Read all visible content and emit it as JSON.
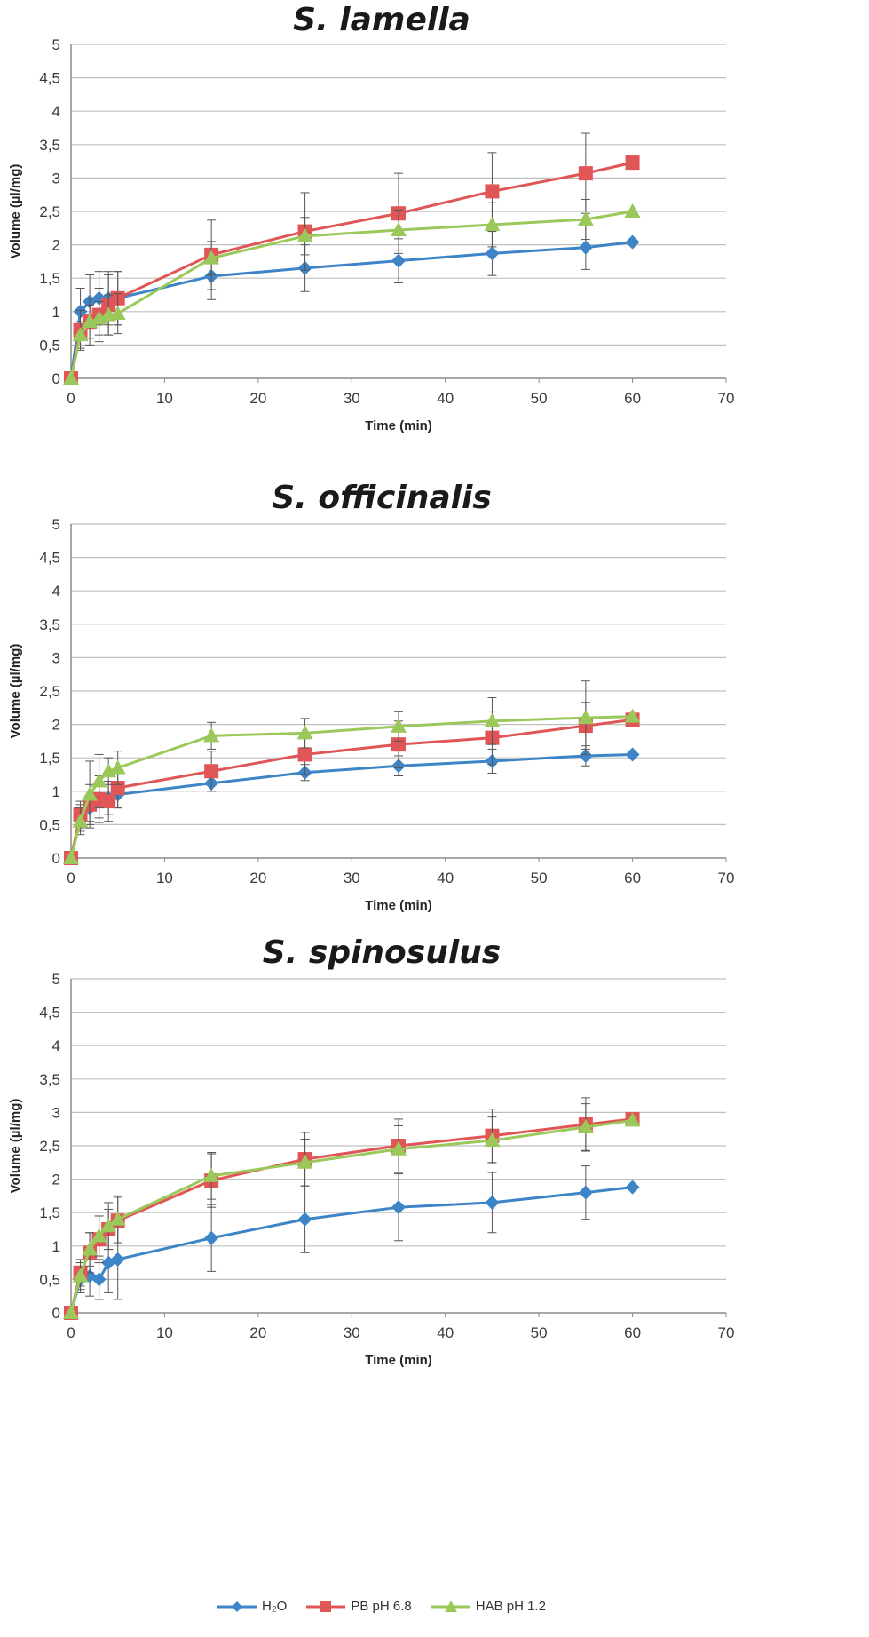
{
  "chart_data": [
    {
      "type": "line",
      "title": "S. lamella",
      "xlabel": "Time (min)",
      "ylabel": "Volume (µl/mg)",
      "xlim": [
        0,
        70
      ],
      "ylim": [
        0,
        5
      ],
      "x_ticks": [
        "0",
        "10",
        "20",
        "30",
        "40",
        "50",
        "60",
        "70"
      ],
      "y_ticks": [
        "0",
        "0,5",
        "1",
        "1,5",
        "2",
        "2,5",
        "3",
        "3,5",
        "4",
        "4,5",
        "5"
      ],
      "grid": true,
      "series": [
        {
          "name": "H2O",
          "color": "#3d85c6",
          "marker": "diamond",
          "x": [
            0,
            1,
            2,
            3,
            4,
            5,
            15,
            25,
            35,
            45,
            55,
            60
          ],
          "y": [
            0,
            1.0,
            1.15,
            1.2,
            1.2,
            1.2,
            1.53,
            1.65,
            1.76,
            1.87,
            1.96,
            2.04
          ],
          "err": [
            0,
            0.35,
            0.4,
            0.4,
            0.4,
            0.4,
            0.35,
            0.35,
            0.33,
            0.33,
            0.33,
            0
          ]
        },
        {
          "name": "PB pH 6.8",
          "color": "#e05555",
          "marker": "square",
          "x": [
            0,
            1,
            2,
            3,
            4,
            5,
            15,
            25,
            35,
            45,
            55,
            60
          ],
          "y": [
            0,
            0.72,
            0.85,
            0.95,
            1.1,
            1.2,
            1.85,
            2.2,
            2.47,
            2.8,
            3.07,
            3.23
          ],
          "err": [
            0,
            0.3,
            0.35,
            0.4,
            0.45,
            0.4,
            0.52,
            0.58,
            0.6,
            0.58,
            0.6,
            0
          ]
        },
        {
          "name": "HAB pH 1.2",
          "color": "#9bc85a",
          "marker": "triangle",
          "x": [
            0,
            1,
            2,
            3,
            4,
            5,
            15,
            25,
            35,
            45,
            55,
            60
          ],
          "y": [
            0,
            0.65,
            0.85,
            0.9,
            0.95,
            0.97,
            1.8,
            2.13,
            2.22,
            2.3,
            2.38,
            2.5
          ],
          "err": [
            0,
            0.2,
            0.25,
            0.25,
            0.3,
            0.3,
            0.25,
            0.28,
            0.3,
            0.33,
            0.3,
            0
          ]
        }
      ]
    },
    {
      "type": "line",
      "title": "S. officinalis",
      "xlabel": "Time (min)",
      "ylabel": "Volume (µl/mg)",
      "xlim": [
        0,
        70
      ],
      "ylim": [
        0,
        5
      ],
      "x_ticks": [
        "0",
        "10",
        "20",
        "30",
        "40",
        "50",
        "60",
        "70"
      ],
      "y_ticks": [
        "0",
        "0,5",
        "1",
        "1,5",
        "2",
        "2,5",
        "3",
        "3,5",
        "4",
        "4,5",
        "5"
      ],
      "grid": true,
      "series": [
        {
          "name": "H2O",
          "color": "#3d85c6",
          "marker": "diamond",
          "x": [
            0,
            1,
            2,
            3,
            4,
            5,
            15,
            25,
            35,
            45,
            55,
            60
          ],
          "y": [
            0,
            0.6,
            0.75,
            0.85,
            0.9,
            0.95,
            1.12,
            1.28,
            1.38,
            1.45,
            1.53,
            1.55
          ],
          "err": [
            0,
            0.2,
            0.2,
            0.25,
            0.25,
            0.2,
            0.12,
            0.12,
            0.15,
            0.18,
            0.15,
            0
          ]
        },
        {
          "name": "PB pH 6.8",
          "color": "#e05555",
          "marker": "square",
          "x": [
            0,
            1,
            2,
            3,
            4,
            5,
            15,
            25,
            35,
            45,
            55,
            60
          ],
          "y": [
            0,
            0.65,
            0.8,
            0.88,
            0.85,
            1.05,
            1.3,
            1.55,
            1.7,
            1.8,
            1.98,
            2.07
          ],
          "err": [
            0,
            0.2,
            0.3,
            0.35,
            0.3,
            0.3,
            0.3,
            0.3,
            0.35,
            0.4,
            0.35,
            0
          ]
        },
        {
          "name": "HAB pH 1.2",
          "color": "#9bc85a",
          "marker": "triangle",
          "x": [
            0,
            1,
            2,
            3,
            4,
            5,
            15,
            25,
            35,
            45,
            55,
            60
          ],
          "y": [
            0,
            0.55,
            0.95,
            1.15,
            1.3,
            1.35,
            1.83,
            1.87,
            1.97,
            2.05,
            2.1,
            2.12
          ],
          "err": [
            0,
            0.2,
            0.5,
            0.4,
            0.2,
            0.25,
            0.2,
            0.22,
            0.22,
            0.35,
            0.55,
            0
          ]
        }
      ]
    },
    {
      "type": "line",
      "title": "S. spinosulus",
      "xlabel": "Time (min)",
      "ylabel": "Volume (µl/mg)",
      "xlim": [
        0,
        70
      ],
      "ylim": [
        0,
        5
      ],
      "x_ticks": [
        "0",
        "10",
        "20",
        "30",
        "40",
        "50",
        "60",
        "70"
      ],
      "y_ticks": [
        "0",
        "0,5",
        "1",
        "1,5",
        "2",
        "2,5",
        "3",
        "3,5",
        "4",
        "4,5",
        "5"
      ],
      "grid": true,
      "series": [
        {
          "name": "H2O",
          "color": "#3d85c6",
          "marker": "diamond",
          "x": [
            0,
            1,
            2,
            3,
            4,
            5,
            15,
            25,
            35,
            45,
            55,
            60
          ],
          "y": [
            0,
            0.5,
            0.55,
            0.5,
            0.75,
            0.8,
            1.12,
            1.4,
            1.58,
            1.65,
            1.8,
            1.88
          ],
          "err": [
            0,
            0.2,
            0.3,
            0.3,
            0.45,
            0.6,
            0.5,
            0.5,
            0.5,
            0.45,
            0.4,
            0
          ]
        },
        {
          "name": "PB pH 6.8",
          "color": "#e05555",
          "marker": "square",
          "x": [
            0,
            1,
            2,
            3,
            4,
            5,
            15,
            25,
            35,
            45,
            55,
            60
          ],
          "y": [
            0,
            0.6,
            0.9,
            1.1,
            1.25,
            1.38,
            1.98,
            2.3,
            2.5,
            2.65,
            2.82,
            2.9
          ],
          "err": [
            0,
            0.2,
            0.3,
            0.35,
            0.3,
            0.35,
            0.4,
            0.4,
            0.4,
            0.4,
            0.4,
            0
          ]
        },
        {
          "name": "HAB pH 1.2",
          "color": "#9bc85a",
          "marker": "triangle",
          "x": [
            0,
            1,
            2,
            3,
            4,
            5,
            15,
            25,
            35,
            45,
            55,
            60
          ],
          "y": [
            0,
            0.55,
            0.95,
            1.15,
            1.3,
            1.4,
            2.05,
            2.25,
            2.45,
            2.58,
            2.78,
            2.88
          ],
          "err": [
            0,
            0.2,
            0.25,
            0.3,
            0.35,
            0.35,
            0.35,
            0.35,
            0.35,
            0.35,
            0.35,
            0
          ]
        }
      ]
    }
  ],
  "legend": [
    {
      "label": "H₂O",
      "color": "#3d85c6",
      "marker": "diamond"
    },
    {
      "label": "PB pH 6.8",
      "color": "#e05555",
      "marker": "square"
    },
    {
      "label": "HAB pH 1.2",
      "color": "#9bc85a",
      "marker": "triangle"
    }
  ]
}
